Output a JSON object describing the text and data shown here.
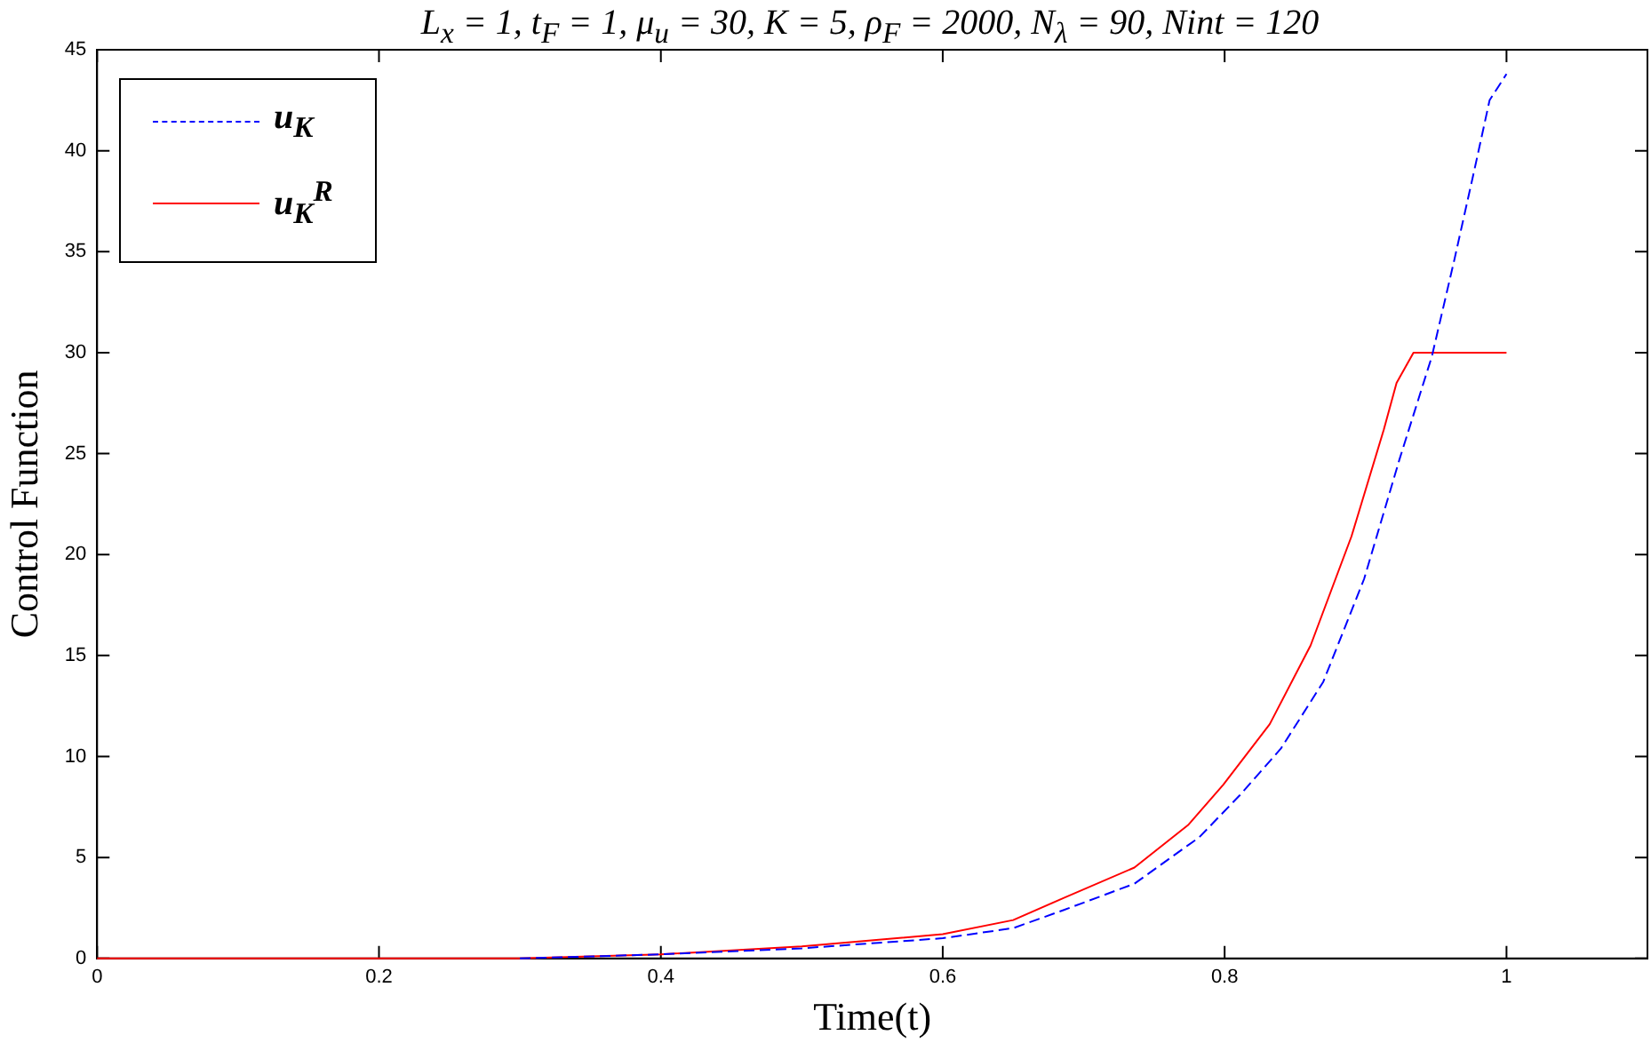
{
  "chart_data": {
    "type": "line",
    "title": "L$_{x}$ = 1, t$_{F}$ = 1, μ$_{u}$ = 30, K = 5, ρ$_{F}$ = 2000, N$_{λ}$ = 90, Nint = 120",
    "xlabel": "Time(t)",
    "ylabel": "Control Function",
    "xlim": [
      0,
      1.1
    ],
    "xticks": [
      0,
      0.2,
      0.4,
      0.6,
      0.8,
      1
    ],
    "ylim": [
      0,
      45
    ],
    "yticks": [
      0,
      5,
      10,
      15,
      20,
      25,
      30,
      35,
      40,
      45
    ],
    "grid": false,
    "legend": "top left",
    "marker": "none",
    "series": [
      {
        "name": "u$_{K}$",
        "color": "#0000ff",
        "line_style": "dashed",
        "x": [
          0.3,
          0.4,
          0.5,
          0.6,
          0.65,
          0.686,
          0.736,
          0.782,
          0.811,
          0.84,
          0.87,
          0.899,
          0.924,
          0.947,
          0.963,
          0.978,
          0.988,
          1
        ],
        "values": [
          0,
          0.2,
          0.5,
          1,
          1.5,
          2.4,
          3.7,
          6,
          8.1,
          10.4,
          13.7,
          18.8,
          24.7,
          29.8,
          34.6,
          39.3,
          42.5,
          43.8
        ]
      },
      {
        "name": "u$_{K}$$^{R}$",
        "color": "#ff0000",
        "line_style": "solid",
        "x": [
          0,
          0.2,
          0.3,
          0.4,
          0.5,
          0.6,
          0.65,
          0.686,
          0.736,
          0.774,
          0.799,
          0.832,
          0.861,
          0.89,
          0.913,
          0.922,
          0.934,
          1
        ],
        "values": [
          0,
          0,
          0,
          0.2,
          0.6,
          1.2,
          1.9,
          3,
          4.5,
          6.6,
          8.6,
          11.6,
          15.5,
          20.9,
          26.2,
          28.5,
          30,
          30
        ]
      }
    ]
  }
}
